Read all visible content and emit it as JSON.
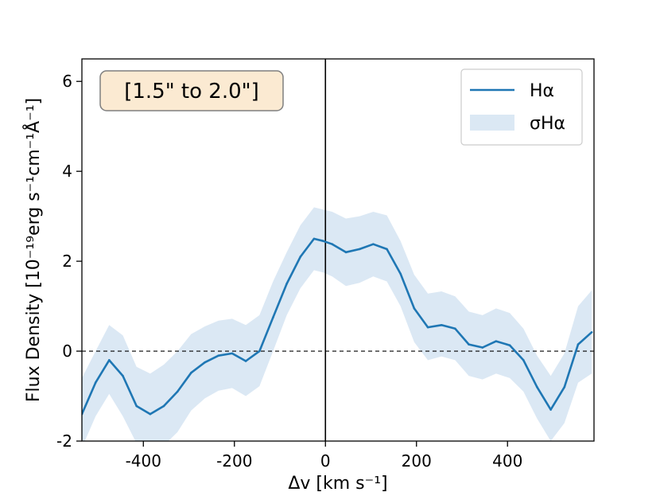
{
  "chart_data": {
    "type": "line",
    "annotation": "[1.5\" to 2.0\"]",
    "xlabel": "Δv [km s⁻¹]",
    "ylabel": "Flux Density [10⁻¹⁹erg s⁻¹cm⁻¹Å⁻¹]",
    "xlim": [
      -535,
      590
    ],
    "ylim": [
      -2,
      6.5
    ],
    "xticks": [
      -400,
      -200,
      0,
      200,
      400
    ],
    "xtick_labels": [
      "-400",
      "-200",
      "0",
      "200",
      "400"
    ],
    "yticks": [
      -2,
      0,
      2,
      4,
      6
    ],
    "ytick_labels": [
      "-2",
      "0",
      "2",
      "4",
      "6"
    ],
    "vline_x": 0,
    "hline_y": 0,
    "legend": {
      "placement": "upper-right",
      "line_label": "Hα",
      "band_label": "σHα"
    },
    "colors": {
      "line": "#1f77b4",
      "band": "#dbe8f4"
    },
    "x": [
      -535,
      -505,
      -475,
      -445,
      -415,
      -385,
      -355,
      -325,
      -295,
      -265,
      -235,
      -205,
      -175,
      -145,
      -115,
      -85,
      -55,
      -25,
      -5,
      15,
      45,
      75,
      105,
      135,
      165,
      195,
      225,
      255,
      285,
      315,
      345,
      375,
      405,
      435,
      465,
      495,
      525,
      555,
      585
    ],
    "series": [
      {
        "name": "Hα",
        "values": [
          -1.4,
          -0.7,
          -0.2,
          -0.55,
          -1.22,
          -1.4,
          -1.22,
          -0.9,
          -0.48,
          -0.25,
          -0.1,
          -0.05,
          -0.22,
          0.0,
          0.75,
          1.5,
          2.1,
          2.5,
          2.45,
          2.38,
          2.2,
          2.27,
          2.38,
          2.27,
          1.72,
          0.95,
          0.53,
          0.58,
          0.5,
          0.15,
          0.08,
          0.22,
          0.13,
          -0.2,
          -0.8,
          -1.3,
          -0.8,
          0.15,
          0.42
        ]
      }
    ],
    "band_upper": [
      -0.6,
      0.0,
      0.58,
      0.35,
      -0.35,
      -0.5,
      -0.3,
      0.0,
      0.38,
      0.55,
      0.68,
      0.72,
      0.58,
      0.8,
      1.55,
      2.2,
      2.8,
      3.2,
      3.15,
      3.1,
      2.95,
      3.0,
      3.1,
      3.02,
      2.45,
      1.7,
      1.28,
      1.33,
      1.22,
      0.88,
      0.8,
      0.95,
      0.85,
      0.5,
      -0.1,
      -0.55,
      -0.05,
      1.0,
      1.35
    ],
    "band_lower": [
      -2.15,
      -1.45,
      -0.95,
      -1.45,
      -2.05,
      -2.25,
      -2.1,
      -1.8,
      -1.32,
      -1.05,
      -0.88,
      -0.82,
      -1.0,
      -0.78,
      0.0,
      0.8,
      1.4,
      1.8,
      1.75,
      1.66,
      1.45,
      1.52,
      1.66,
      1.55,
      1.0,
      0.2,
      -0.2,
      -0.12,
      -0.2,
      -0.55,
      -0.63,
      -0.5,
      -0.6,
      -0.9,
      -1.5,
      -2.0,
      -1.6,
      -0.7,
      -0.5
    ]
  }
}
